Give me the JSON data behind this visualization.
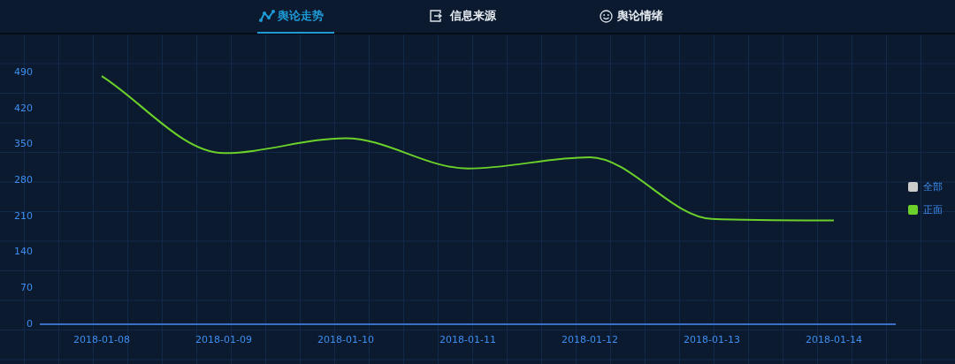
{
  "chart_data": {
    "type": "line",
    "categories": [
      "2018-01-08",
      "2018-01-09",
      "2018-01-10",
      "2018-01-11",
      "2018-01-12",
      "2018-01-13",
      "2018-01-14"
    ],
    "series": [
      {
        "name": "全部",
        "color": "#cccccc",
        "values": [
          null,
          null,
          null,
          null,
          null,
          null,
          null
        ]
      },
      {
        "name": "正面",
        "color": "#6bd02a",
        "values": [
          483,
          333,
          362,
          303,
          325,
          205,
          202
        ]
      }
    ],
    "ylim": [
      0,
      490
    ],
    "yticks": [
      0,
      70,
      140,
      210,
      280,
      350,
      420,
      490
    ],
    "legend": "right",
    "marker": "none",
    "line_style": "solid",
    "annotations": [
      "舆论走势",
      "信息来源",
      "舆论情绪"
    ]
  }
}
